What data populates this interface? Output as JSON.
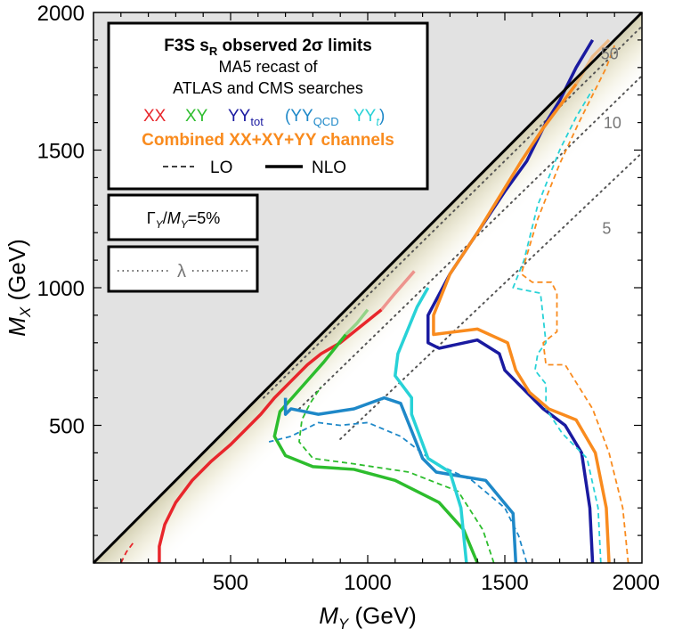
{
  "chart_data": {
    "type": "line",
    "xlabel": {
      "main": "M",
      "sub": "Y",
      "unit": " (GeV)"
    },
    "ylabel": {
      "main": "M",
      "sub": "X",
      "unit": " (GeV)"
    },
    "xlim": [
      0,
      2000
    ],
    "ylim": [
      0,
      2000
    ],
    "xticks": [
      500,
      1000,
      1500,
      2000
    ],
    "yticks": [
      500,
      1000,
      1500,
      2000
    ],
    "tick_labels": {
      "x": [
        "500",
        "1000",
        "1500",
        "2000"
      ],
      "y": [
        "500",
        "1000",
        "1500",
        "2000"
      ]
    },
    "colors": {
      "XX": "#e8262b",
      "XY": "#2dbd2d",
      "YYtot": "#1a1aa0",
      "YYQCD": "#1e88c8",
      "YYt": "#28d2d7",
      "combined": "#f98b1e",
      "excluded": "#e2e2e2",
      "lambda": "#555555"
    },
    "legend": {
      "title_main": "F3S s",
      "title_sub": "R",
      "title_rest": " observed 2σ limits",
      "line2": "MA5 recast of",
      "line3": "ATLAS and CMS searches",
      "xx": "XX",
      "xy": "XY",
      "yy_main": "YY",
      "yy_sub": "tot",
      "paren_open": "(",
      "yyqcd_main": "YY",
      "yyqcd_sub": "QCD",
      "yyt_main": "YY",
      "yyt_sub": "t",
      "paren_close": ")",
      "combined": "Combined XX+XY+YY channels",
      "lo": "LO",
      "nlo": "NLO"
    },
    "width_box": {
      "gamma": "Γ",
      "sub1": "Y",
      "slash": "/",
      "m": "M",
      "sub2": "Y",
      "value": "=5%"
    },
    "lambda_box": {
      "label": "λ"
    },
    "lambda_labels": [
      {
        "text": "50",
        "x": 1850,
        "y": 1830
      },
      {
        "text": "10",
        "x": 1860,
        "y": 1580
      },
      {
        "text": "5",
        "x": 1855,
        "y": 1195
      }
    ],
    "lambda_lines": [
      {
        "label": "50",
        "points": [
          [
            620,
            600
          ],
          [
            2000,
            1950
          ]
        ]
      },
      {
        "label": "10",
        "points": [
          [
            750,
            560
          ],
          [
            2000,
            1770
          ]
        ]
      },
      {
        "label": "5",
        "points": [
          [
            900,
            450
          ],
          [
            2000,
            1490
          ]
        ]
      }
    ],
    "series": [
      {
        "name": "XX NLO",
        "channel": "XX",
        "order": "NLO",
        "points": [
          [
            240,
            0
          ],
          [
            240,
            60
          ],
          [
            260,
            140
          ],
          [
            300,
            220
          ],
          [
            360,
            300
          ],
          [
            430,
            370
          ],
          [
            500,
            430
          ],
          [
            560,
            490
          ],
          [
            610,
            540
          ],
          [
            660,
            600
          ],
          [
            720,
            660
          ],
          [
            780,
            720
          ],
          [
            830,
            760
          ],
          [
            900,
            800
          ],
          [
            1000,
            880
          ],
          [
            1050,
            920
          ]
        ],
        "faded": [
          [
            1050,
            920
          ],
          [
            1100,
            980
          ],
          [
            1170,
            1060
          ]
        ]
      },
      {
        "name": "XX LO",
        "channel": "XX",
        "order": "LO",
        "points": [
          [
            100,
            0
          ],
          [
            120,
            40
          ],
          [
            150,
            80
          ]
        ]
      },
      {
        "name": "XY NLO",
        "channel": "XY",
        "order": "NLO",
        "points": [
          [
            1400,
            0
          ],
          [
            1350,
            120
          ],
          [
            1260,
            220
          ],
          [
            1100,
            300
          ],
          [
            950,
            340
          ],
          [
            800,
            350
          ],
          [
            700,
            390
          ],
          [
            660,
            460
          ],
          [
            680,
            550
          ],
          [
            760,
            640
          ],
          [
            840,
            730
          ],
          [
            880,
            780
          ],
          [
            920,
            830
          ]
        ],
        "faded": [
          [
            920,
            830
          ],
          [
            960,
            870
          ],
          [
            1000,
            920
          ]
        ]
      },
      {
        "name": "XY LO",
        "channel": "XY",
        "order": "LO",
        "points": [
          [
            1460,
            0
          ],
          [
            1420,
            120
          ],
          [
            1330,
            260
          ],
          [
            1150,
            330
          ],
          [
            950,
            360
          ],
          [
            800,
            380
          ],
          [
            750,
            440
          ],
          [
            760,
            520
          ],
          [
            790,
            580
          ],
          [
            830,
            640
          ]
        ]
      },
      {
        "name": "YY_QCD NLO",
        "channel": "YYQCD",
        "order": "NLO",
        "points": [
          [
            1540,
            0
          ],
          [
            1530,
            180
          ],
          [
            1430,
            300
          ],
          [
            1250,
            330
          ],
          [
            1200,
            380
          ],
          [
            1120,
            580
          ],
          [
            1060,
            600
          ],
          [
            950,
            560
          ],
          [
            820,
            540
          ],
          [
            720,
            560
          ],
          [
            700,
            540
          ],
          [
            700,
            600
          ]
        ]
      },
      {
        "name": "YY_QCD LO",
        "channel": "YYQCD",
        "order": "LO",
        "points": [
          [
            1580,
            0
          ],
          [
            1550,
            100
          ],
          [
            1500,
            200
          ],
          [
            1380,
            300
          ],
          [
            1250,
            360
          ],
          [
            1120,
            460
          ],
          [
            1000,
            510
          ],
          [
            900,
            500
          ],
          [
            820,
            510
          ],
          [
            720,
            460
          ],
          [
            640,
            440
          ]
        ]
      },
      {
        "name": "YY_tot NLO",
        "channel": "YYtot",
        "order": "NLO",
        "points": [
          [
            1820,
            0
          ],
          [
            1810,
            200
          ],
          [
            1780,
            400
          ],
          [
            1720,
            500
          ],
          [
            1640,
            560
          ],
          [
            1560,
            640
          ],
          [
            1500,
            700
          ],
          [
            1480,
            760
          ],
          [
            1400,
            810
          ],
          [
            1260,
            780
          ],
          [
            1220,
            800
          ],
          [
            1220,
            900
          ],
          [
            1300,
            1050
          ],
          [
            1400,
            1200
          ],
          [
            1500,
            1350
          ],
          [
            1580,
            1460
          ],
          [
            1650,
            1600
          ],
          [
            1700,
            1680
          ],
          [
            1760,
            1800
          ],
          [
            1820,
            1900
          ]
        ]
      },
      {
        "name": "YY_t NLO",
        "channel": "YYt",
        "order": "NLO",
        "points": [
          [
            1360,
            0
          ],
          [
            1340,
            200
          ],
          [
            1300,
            330
          ],
          [
            1220,
            380
          ],
          [
            1160,
            540
          ],
          [
            1160,
            600
          ],
          [
            1100,
            680
          ],
          [
            1110,
            760
          ],
          [
            1180,
            930
          ],
          [
            1220,
            1000
          ]
        ]
      },
      {
        "name": "YY_t LO",
        "channel": "YYt",
        "order": "LO",
        "points": [
          [
            1850,
            0
          ],
          [
            1840,
            200
          ],
          [
            1800,
            380
          ],
          [
            1710,
            470
          ],
          [
            1650,
            560
          ],
          [
            1650,
            650
          ],
          [
            1610,
            700
          ],
          [
            1620,
            760
          ],
          [
            1650,
            800
          ],
          [
            1630,
            980
          ],
          [
            1530,
            1000
          ],
          [
            1570,
            1100
          ],
          [
            1620,
            1300
          ],
          [
            1660,
            1400
          ],
          [
            1700,
            1500
          ],
          [
            1760,
            1620
          ],
          [
            1820,
            1720
          ]
        ]
      },
      {
        "name": "Combined NLO",
        "channel": "combined",
        "order": "NLO",
        "points": [
          [
            1880,
            0
          ],
          [
            1870,
            200
          ],
          [
            1830,
            400
          ],
          [
            1760,
            520
          ],
          [
            1660,
            560
          ],
          [
            1590,
            620
          ],
          [
            1540,
            700
          ],
          [
            1510,
            800
          ],
          [
            1400,
            850
          ],
          [
            1240,
            830
          ],
          [
            1240,
            900
          ],
          [
            1300,
            1050
          ],
          [
            1400,
            1200
          ],
          [
            1480,
            1330
          ],
          [
            1560,
            1460
          ],
          [
            1640,
            1580
          ],
          [
            1700,
            1660
          ],
          [
            1760,
            1740
          ]
        ],
        "faded": [
          [
            1760,
            1740
          ],
          [
            1820,
            1840
          ],
          [
            1880,
            1900
          ]
        ]
      },
      {
        "name": "Combined LO",
        "channel": "combined",
        "order": "LO",
        "points": [
          [
            1950,
            0
          ],
          [
            1930,
            200
          ],
          [
            1880,
            400
          ],
          [
            1820,
            560
          ],
          [
            1720,
            720
          ],
          [
            1650,
            720
          ],
          [
            1640,
            800
          ],
          [
            1690,
            840
          ],
          [
            1690,
            980
          ],
          [
            1670,
            1020
          ],
          [
            1600,
            1020
          ],
          [
            1560,
            1050
          ],
          [
            1620,
            1250
          ],
          [
            1700,
            1450
          ],
          [
            1770,
            1600
          ],
          [
            1830,
            1720
          ],
          [
            1870,
            1800
          ],
          [
            1900,
            1880
          ]
        ]
      }
    ]
  }
}
